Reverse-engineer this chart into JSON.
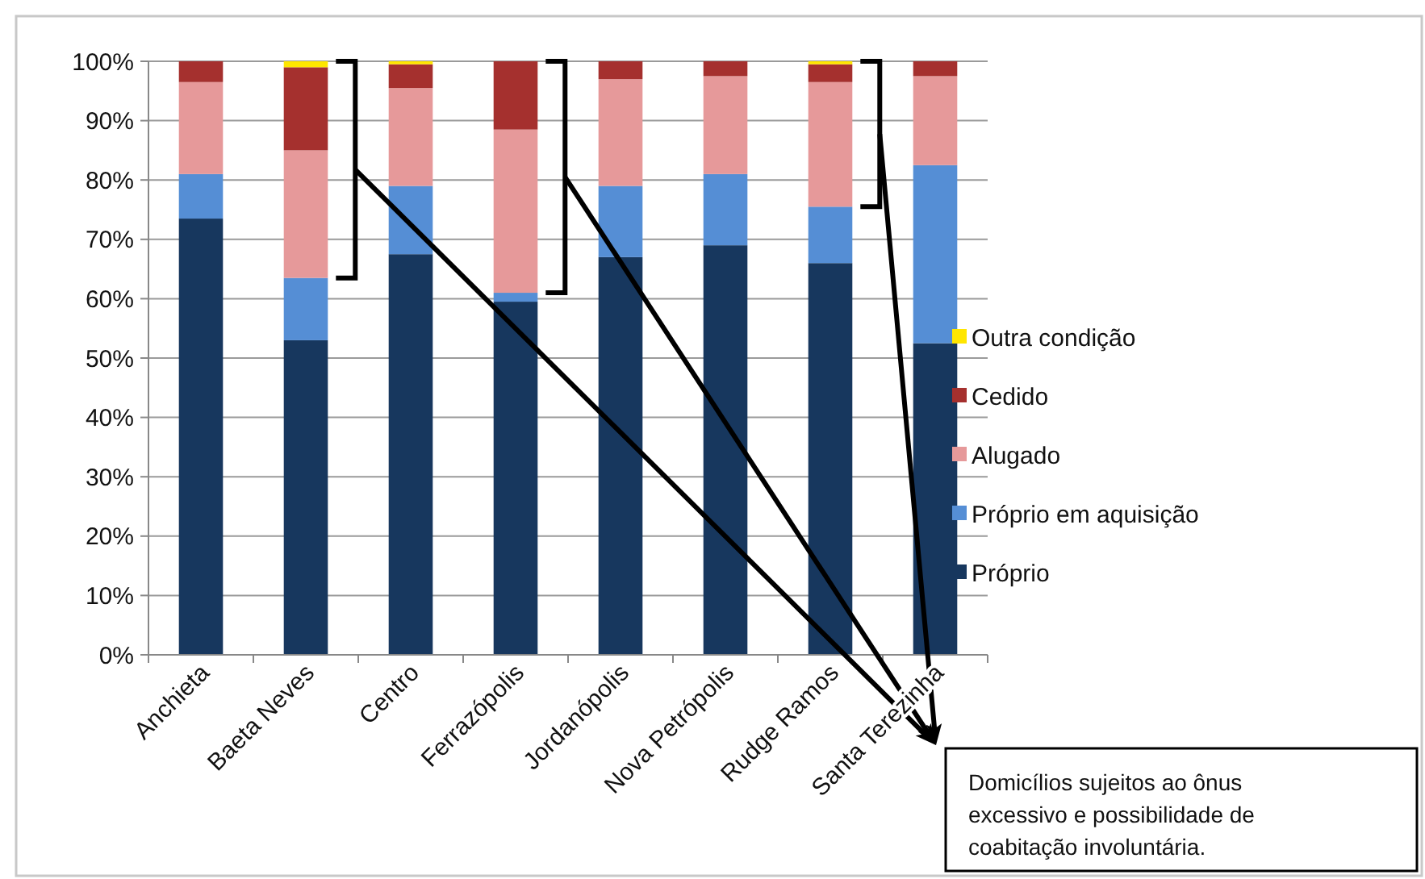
{
  "chart_data": {
    "type": "bar",
    "stacked": true,
    "categories": [
      "Anchieta",
      "Baeta Neves",
      "Centro",
      "Ferrazópolis",
      "Jordanópolis",
      "Nova Petrópolis",
      "Rudge Ramos",
      "Santa Terezinha"
    ],
    "series": [
      {
        "name": "Próprio",
        "color": "#17375e",
        "values": [
          73.5,
          53,
          67.5,
          59.5,
          67,
          69,
          66,
          52.5
        ]
      },
      {
        "name": "Próprio em aquisição",
        "color": "#558ed5",
        "values": [
          7.5,
          10.5,
          11.5,
          1.5,
          12,
          12,
          9.5,
          30
        ]
      },
      {
        "name": "Alugado",
        "color": "#e6999a",
        "values": [
          15.5,
          21.5,
          16.5,
          27.5,
          18,
          16.5,
          21,
          15
        ]
      },
      {
        "name": "Cedido",
        "color": "#a5302e",
        "values": [
          3.5,
          14,
          4,
          11.5,
          3,
          2.5,
          3,
          2.5
        ]
      },
      {
        "name": "Outra condição",
        "color": "#ffe600",
        "values": [
          0,
          1,
          0.5,
          0,
          0,
          0,
          0.5,
          0
        ]
      }
    ],
    "ylim": [
      0,
      100
    ],
    "yticks": [
      {
        "value": 0,
        "label": "0%"
      },
      {
        "value": 10,
        "label": "10%"
      },
      {
        "value": 20,
        "label": "20%"
      },
      {
        "value": 30,
        "label": "30%"
      },
      {
        "value": 40,
        "label": "40%"
      },
      {
        "value": 50,
        "label": "50%"
      },
      {
        "value": 60,
        "label": "60%"
      },
      {
        "value": 70,
        "label": "70%"
      },
      {
        "value": 80,
        "label": "80%"
      },
      {
        "value": 90,
        "label": "90%"
      },
      {
        "value": 100,
        "label": "100%"
      }
    ],
    "grid": "y",
    "legend": "right",
    "annotations": [
      "Domicílios sujeitos ao ônus excessivo e possibilidade de coabitação involuntária."
    ]
  }
}
